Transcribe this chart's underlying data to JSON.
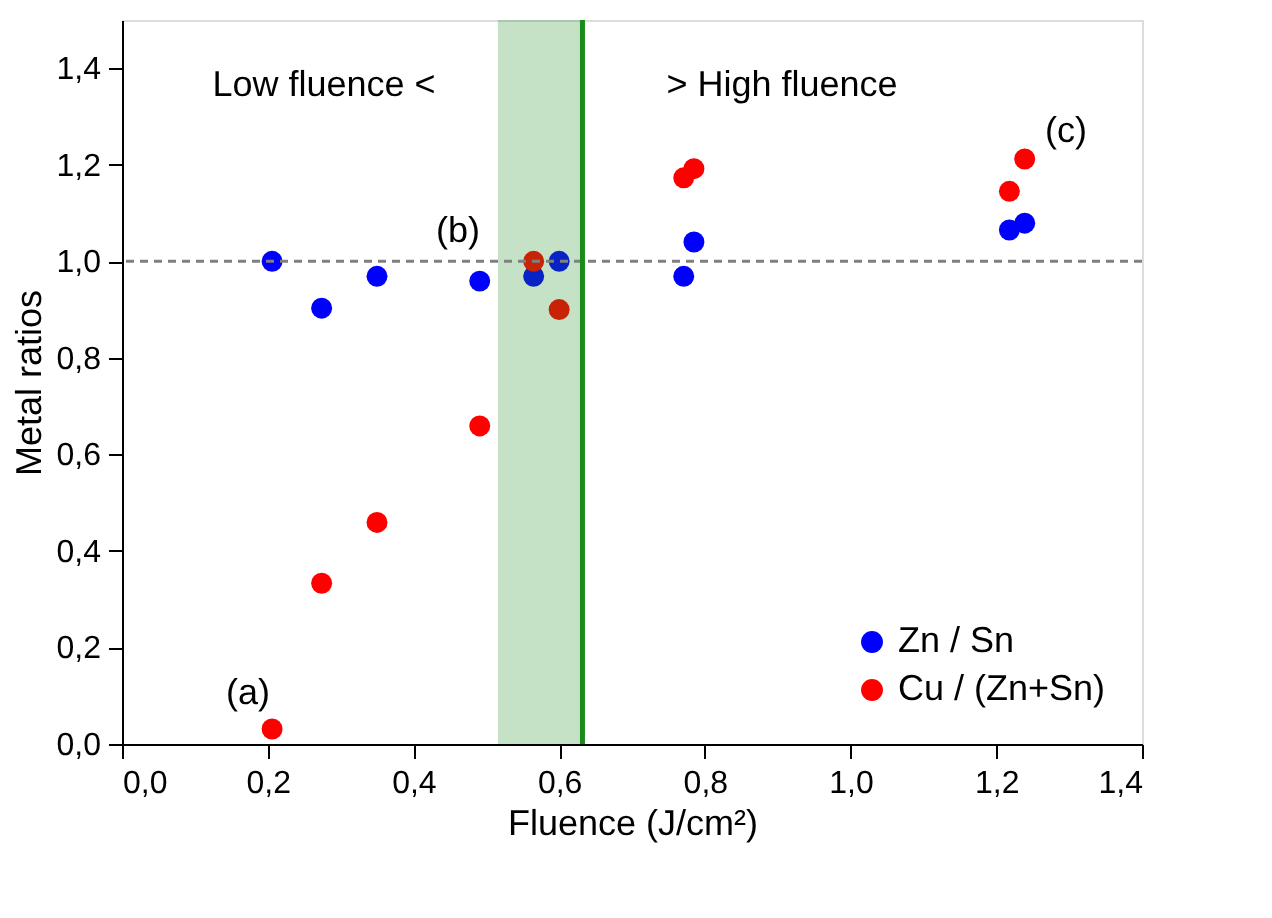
{
  "chart_data": {
    "type": "scatter",
    "xlabel": "Fluence (J/cm²)",
    "ylabel": "Metal ratios",
    "xlim": [
      0,
      1.4
    ],
    "ylim": [
      0,
      1.5
    ],
    "xticks": [
      {
        "value": 0,
        "label": "0,0"
      },
      {
        "value": 0.2,
        "label": "0,2"
      },
      {
        "value": 0.4,
        "label": "0,4"
      },
      {
        "value": 0.6,
        "label": "0,6"
      },
      {
        "value": 0.8,
        "label": "0,8"
      },
      {
        "value": 1.0,
        "label": "1,0"
      },
      {
        "value": 1.2,
        "label": "1,2"
      },
      {
        "value": 1.4,
        "label": "1,4"
      }
    ],
    "yticks": [
      {
        "value": 0,
        "label": "0,0"
      },
      {
        "value": 0.2,
        "label": "0,2"
      },
      {
        "value": 0.4,
        "label": "0,4"
      },
      {
        "value": 0.6,
        "label": "0,6"
      },
      {
        "value": 0.8,
        "label": "0,8"
      },
      {
        "value": 1.0,
        "label": "1,0"
      },
      {
        "value": 1.2,
        "label": "1,2"
      },
      {
        "value": 1.4,
        "label": "1,4"
      }
    ],
    "marker": "circle",
    "grid": false,
    "legend": "bottom right",
    "series": [
      {
        "name": "Zn / Sn",
        "color": "#0000ff",
        "x": [
          0.206,
          0.274,
          0.35,
          0.491,
          0.565,
          0.6,
          0.771,
          0.785,
          1.218,
          1.239
        ],
        "values": [
          1.0,
          0.903,
          0.969,
          0.959,
          0.969,
          1.0,
          0.969,
          1.04,
          1.065,
          1.079
        ]
      },
      {
        "name": "Cu / (Zn+Sn)",
        "color": "#ff0000",
        "x": [
          0.206,
          0.274,
          0.35,
          0.491,
          0.565,
          0.6,
          0.771,
          0.785,
          1.218,
          1.239
        ],
        "values": [
          0.031,
          0.333,
          0.459,
          0.659,
          1.0,
          0.9,
          1.173,
          1.192,
          1.145,
          1.212
        ]
      }
    ],
    "ref_lines": [
      {
        "axis": "y",
        "value": 1.0,
        "color": "#808080",
        "line_style": "dashed"
      },
      {
        "axis": "x",
        "value": 0.632,
        "color": "#1a8a1a",
        "line_style": "solid"
      }
    ],
    "bands": [
      {
        "axis": "x",
        "from": 0.516,
        "to": 0.632,
        "color": "#1a8a1a"
      }
    ],
    "annotations": [
      "Low fluence <",
      "> High fluence",
      "(a)",
      "(b)",
      "(c)"
    ]
  }
}
